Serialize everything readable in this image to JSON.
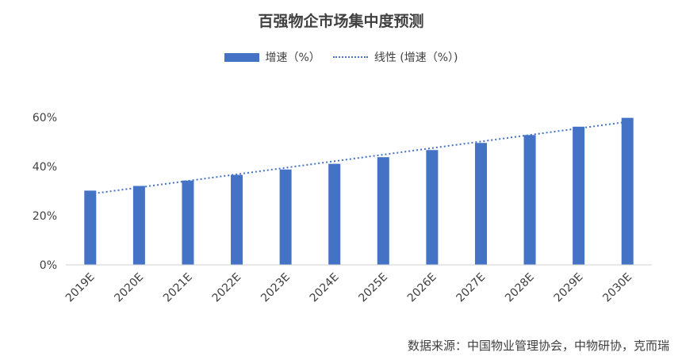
{
  "chart_data": {
    "type": "bar",
    "title": "百强物企市场集中度预测",
    "categories": [
      "2019E",
      "2020E",
      "2021E",
      "2022E",
      "2023E",
      "2024E",
      "2025E",
      "2026E",
      "2027E",
      "2028E",
      "2029E",
      "2030E"
    ],
    "series": [
      {
        "name": "增速（%）",
        "values": [
          30.2,
          32.1,
          34.3,
          36.6,
          38.8,
          41.1,
          43.8,
          46.7,
          49.6,
          52.8,
          56.2,
          59.8
        ],
        "color": "#4472C4"
      }
    ],
    "trendline": {
      "name": "线性 (增速（%）)",
      "style": "dotted",
      "color": "#4472C4"
    },
    "y_ticks": [
      "0%",
      "20%",
      "40%",
      "60%"
    ],
    "ylim": [
      0,
      60
    ],
    "grid": false,
    "legend_position": "top"
  },
  "source": "数据来源：中国物业管理协会，中物研协，克而瑞"
}
